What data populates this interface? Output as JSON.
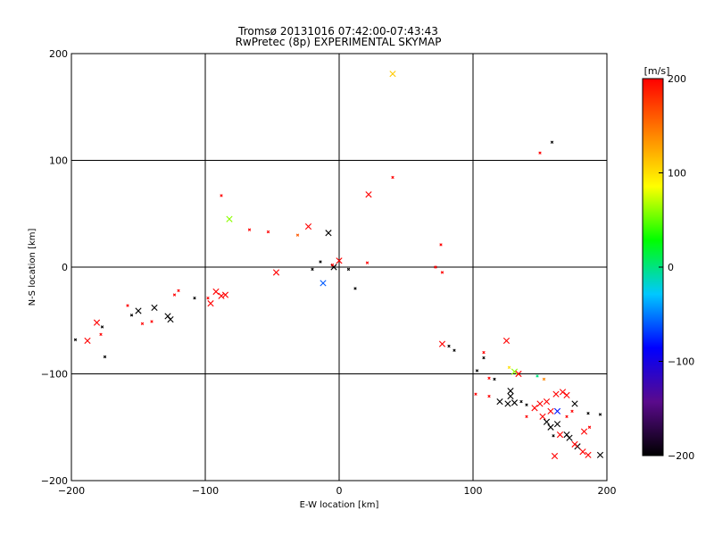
{
  "chart_data": {
    "type": "scatter",
    "title": "Tromsø 20131016 07:42:00-07:43:43",
    "subtitle": "RwPretec (8p) EXPERIMENTAL SKYMAP",
    "xlabel": "E-W location [km]",
    "ylabel": "N-S location [km]",
    "xlim": [
      -200,
      200
    ],
    "ylim": [
      -200,
      200
    ],
    "xticks": [
      -200,
      -100,
      0,
      100,
      200
    ],
    "yticks": [
      -200,
      -100,
      0,
      100,
      200
    ],
    "xtick_labels": [
      "−200",
      "−100",
      "0",
      "100",
      "200"
    ],
    "ytick_labels": [
      "−200",
      "−100",
      "0",
      "100",
      "200"
    ],
    "grid": true,
    "colorbar": {
      "label": "[m/s]",
      "range": [
        -200,
        200
      ],
      "ticks": [
        200,
        100,
        0,
        -100,
        -200
      ],
      "tick_labels": [
        "200",
        "100",
        "0",
        "−100",
        "−200"
      ],
      "colors": [
        "#000000",
        "#5a0a8c",
        "#0000ff",
        "#00c8ff",
        "#00ff00",
        "#ffff00",
        "#ff8000",
        "#ff0000"
      ]
    },
    "points": [
      {
        "x": 40,
        "y": 181,
        "v": 110,
        "s": 1
      },
      {
        "x": 159,
        "y": 117,
        "v": -200,
        "s": 0
      },
      {
        "x": 150,
        "y": 107,
        "v": 200,
        "s": 0
      },
      {
        "x": 40,
        "y": 84,
        "v": 200,
        "s": 0
      },
      {
        "x": 22,
        "y": 68,
        "v": 200,
        "s": 1
      },
      {
        "x": -88,
        "y": 67,
        "v": 200,
        "s": 0
      },
      {
        "x": -82,
        "y": 45,
        "v": 60,
        "s": 1
      },
      {
        "x": -67,
        "y": 35,
        "v": 200,
        "s": 0
      },
      {
        "x": -53,
        "y": 33,
        "v": 200,
        "s": 0
      },
      {
        "x": -23,
        "y": 38,
        "v": 200,
        "s": 1
      },
      {
        "x": -31,
        "y": 30,
        "v": 160,
        "s": 0
      },
      {
        "x": -8,
        "y": 32,
        "v": -200,
        "s": 1
      },
      {
        "x": 76,
        "y": 21,
        "v": 200,
        "s": 0
      },
      {
        "x": -47,
        "y": -5,
        "v": 200,
        "s": 1
      },
      {
        "x": -12,
        "y": -15,
        "v": -60,
        "s": 1
      },
      {
        "x": 0,
        "y": 6,
        "v": 200,
        "s": 1
      },
      {
        "x": -4,
        "y": 0,
        "v": -200,
        "s": 1
      },
      {
        "x": -5,
        "y": 2,
        "v": 200,
        "s": 0
      },
      {
        "x": -14,
        "y": 5,
        "v": -200,
        "s": 0
      },
      {
        "x": -20,
        "y": -2,
        "v": -200,
        "s": 0
      },
      {
        "x": 7,
        "y": -2,
        "v": -200,
        "s": 0
      },
      {
        "x": 12,
        "y": -20,
        "v": -200,
        "s": 0
      },
      {
        "x": 21,
        "y": 4,
        "v": 200,
        "s": 0
      },
      {
        "x": 72,
        "y": 0,
        "v": 200,
        "s": 0
      },
      {
        "x": 77,
        "y": -5,
        "v": 200,
        "s": 0
      },
      {
        "x": -92,
        "y": -23,
        "v": 200,
        "s": 1
      },
      {
        "x": -88,
        "y": -27,
        "v": 200,
        "s": 1
      },
      {
        "x": -85,
        "y": -26,
        "v": 200,
        "s": 1
      },
      {
        "x": -96,
        "y": -34,
        "v": 200,
        "s": 1
      },
      {
        "x": -98,
        "y": -29,
        "v": 200,
        "s": 0
      },
      {
        "x": -108,
        "y": -29,
        "v": -200,
        "s": 0
      },
      {
        "x": -120,
        "y": -22,
        "v": 200,
        "s": 0
      },
      {
        "x": -123,
        "y": -26,
        "v": 200,
        "s": 0
      },
      {
        "x": -128,
        "y": -46,
        "v": -200,
        "s": 1
      },
      {
        "x": -126,
        "y": -49,
        "v": -200,
        "s": 1
      },
      {
        "x": -138,
        "y": -38,
        "v": -200,
        "s": 1
      },
      {
        "x": -150,
        "y": -41,
        "v": -200,
        "s": 1
      },
      {
        "x": -155,
        "y": -45,
        "v": -200,
        "s": 0
      },
      {
        "x": -158,
        "y": -36,
        "v": 200,
        "s": 0
      },
      {
        "x": -147,
        "y": -53,
        "v": 200,
        "s": 0
      },
      {
        "x": -140,
        "y": -51,
        "v": 200,
        "s": 0
      },
      {
        "x": -181,
        "y": -52,
        "v": 200,
        "s": 1
      },
      {
        "x": -177,
        "y": -56,
        "v": -200,
        "s": 0
      },
      {
        "x": -178,
        "y": -63,
        "v": 200,
        "s": 0
      },
      {
        "x": -188,
        "y": -69,
        "v": 200,
        "s": 1
      },
      {
        "x": -197,
        "y": -68,
        "v": -200,
        "s": 0
      },
      {
        "x": -175,
        "y": -84,
        "v": -200,
        "s": 0
      },
      {
        "x": 77,
        "y": -72,
        "v": 200,
        "s": 1
      },
      {
        "x": 82,
        "y": -74,
        "v": -200,
        "s": 0
      },
      {
        "x": 86,
        "y": -78,
        "v": -200,
        "s": 0
      },
      {
        "x": 108,
        "y": -80,
        "v": 200,
        "s": 0
      },
      {
        "x": 108,
        "y": -85,
        "v": -200,
        "s": 0
      },
      {
        "x": 125,
        "y": -69,
        "v": 200,
        "s": 1
      },
      {
        "x": 103,
        "y": -97,
        "v": -200,
        "s": 0
      },
      {
        "x": 116,
        "y": -105,
        "v": -200,
        "s": 0
      },
      {
        "x": 112,
        "y": -104,
        "v": 200,
        "s": 0
      },
      {
        "x": 131,
        "y": -98,
        "v": 60,
        "s": 1
      },
      {
        "x": 134,
        "y": -100,
        "v": 200,
        "s": 1
      },
      {
        "x": 127,
        "y": -94,
        "v": 100,
        "s": 0
      },
      {
        "x": 148,
        "y": -102,
        "v": 0,
        "s": 0
      },
      {
        "x": 153,
        "y": -105,
        "v": 140,
        "s": 0
      },
      {
        "x": 102,
        "y": -119,
        "v": 200,
        "s": 0
      },
      {
        "x": 112,
        "y": -121,
        "v": 200,
        "s": 0
      },
      {
        "x": 120,
        "y": -126,
        "v": -200,
        "s": 1
      },
      {
        "x": 128,
        "y": -121,
        "v": -200,
        "s": 1
      },
      {
        "x": 128,
        "y": -116,
        "v": -200,
        "s": 1
      },
      {
        "x": 131,
        "y": -127,
        "v": -200,
        "s": 1
      },
      {
        "x": 126,
        "y": -128,
        "v": -200,
        "s": 1
      },
      {
        "x": 136,
        "y": -126,
        "v": -200,
        "s": 0
      },
      {
        "x": 140,
        "y": -129,
        "v": -200,
        "s": 0
      },
      {
        "x": 150,
        "y": -128,
        "v": 200,
        "s": 1
      },
      {
        "x": 155,
        "y": -126,
        "v": 200,
        "s": 1
      },
      {
        "x": 146,
        "y": -132,
        "v": 200,
        "s": 1
      },
      {
        "x": 162,
        "y": -119,
        "v": 200,
        "s": 1
      },
      {
        "x": 167,
        "y": -117,
        "v": 200,
        "s": 1
      },
      {
        "x": 170,
        "y": -120,
        "v": 200,
        "s": 1
      },
      {
        "x": 163,
        "y": -135,
        "v": -80,
        "s": 1
      },
      {
        "x": 158,
        "y": -135,
        "v": 200,
        "s": 1
      },
      {
        "x": 152,
        "y": -140,
        "v": 200,
        "s": 1
      },
      {
        "x": 155,
        "y": -145,
        "v": -200,
        "s": 1
      },
      {
        "x": 158,
        "y": -150,
        "v": -200,
        "s": 1
      },
      {
        "x": 163,
        "y": -147,
        "v": -200,
        "s": 1
      },
      {
        "x": 170,
        "y": -140,
        "v": 200,
        "s": 0
      },
      {
        "x": 176,
        "y": -128,
        "v": -200,
        "s": 1
      },
      {
        "x": 174,
        "y": -135,
        "v": 200,
        "s": 0
      },
      {
        "x": 186,
        "y": -137,
        "v": -200,
        "s": 0
      },
      {
        "x": 195,
        "y": -138,
        "v": -200,
        "s": 0
      },
      {
        "x": 170,
        "y": -157,
        "v": -200,
        "s": 1
      },
      {
        "x": 172,
        "y": -160,
        "v": -200,
        "s": 1
      },
      {
        "x": 165,
        "y": -157,
        "v": 200,
        "s": 1
      },
      {
        "x": 183,
        "y": -154,
        "v": 200,
        "s": 1
      },
      {
        "x": 187,
        "y": -150,
        "v": 200,
        "s": 0
      },
      {
        "x": 178,
        "y": -168,
        "v": -200,
        "s": 1
      },
      {
        "x": 176,
        "y": -166,
        "v": 200,
        "s": 1
      },
      {
        "x": 182,
        "y": -173,
        "v": 200,
        "s": 1
      },
      {
        "x": 186,
        "y": -176,
        "v": 200,
        "s": 1
      },
      {
        "x": 161,
        "y": -177,
        "v": 200,
        "s": 1
      },
      {
        "x": 195,
        "y": -176,
        "v": -200,
        "s": 1
      },
      {
        "x": 160,
        "y": -158,
        "v": -200,
        "s": 0
      },
      {
        "x": 140,
        "y": -140,
        "v": 200,
        "s": 0
      }
    ]
  }
}
